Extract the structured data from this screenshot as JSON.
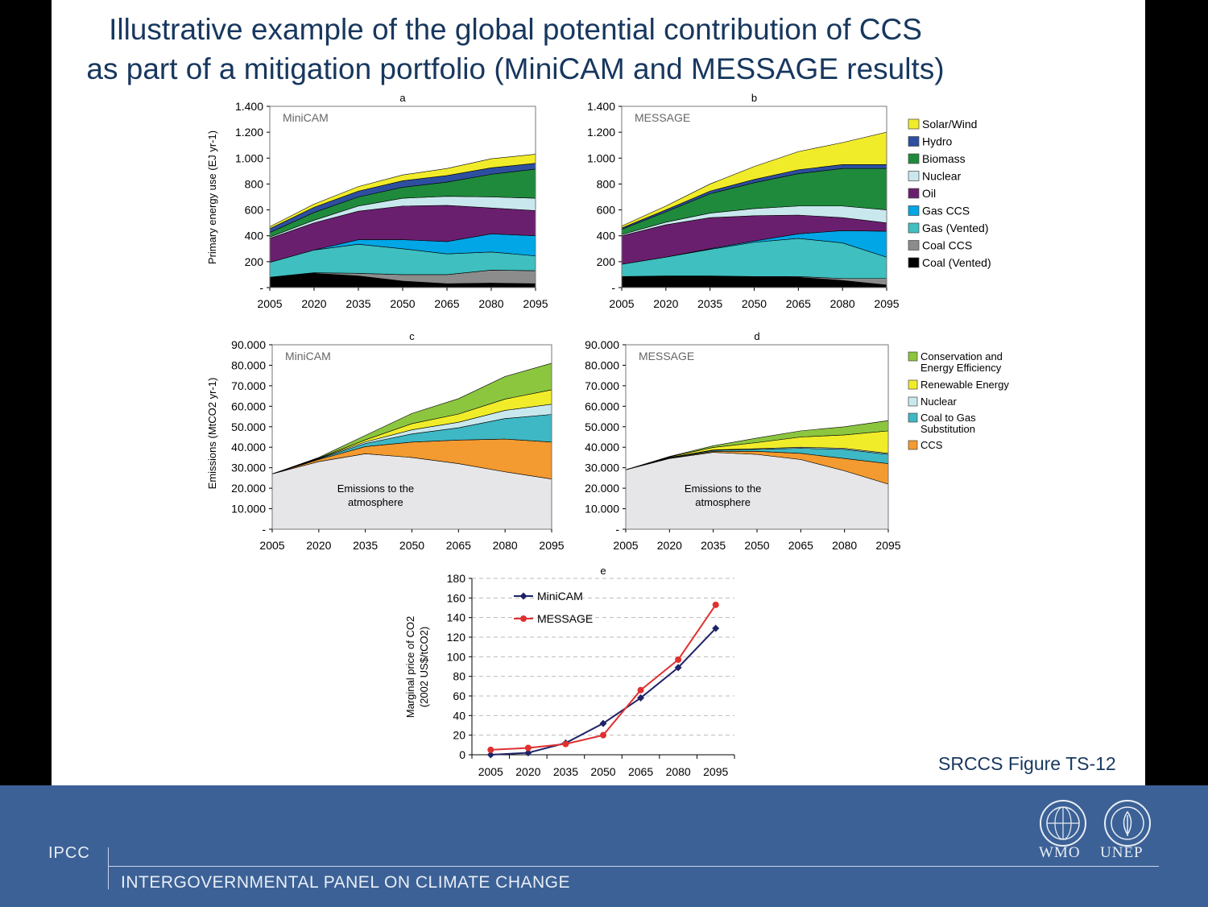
{
  "slide": {
    "title_line1": "Illustrative example of the global potential contribution of CCS",
    "title_line2": "as part of a mitigation portfolio (MiniCAM and MESSAGE results)",
    "source": "SRCCS Figure TS-12"
  },
  "footer": {
    "org_abbrev": "IPCC",
    "org_name": "INTERGOVERNMENTAL PANEL ON CLIMATE CHANGE",
    "logo_left": "WMO",
    "logo_right": "UNEP",
    "background": "#3c6196"
  },
  "chart_data": [
    {
      "panel": "a",
      "model": "MiniCAM",
      "type": "area",
      "ylabel": "Primary energy use (EJ yr-1)",
      "ylim": [
        0,
        1400
      ],
      "y_ticks": [
        "-",
        "200",
        "400",
        "600",
        "800",
        "1.000",
        "1.200",
        "1.400"
      ],
      "x": [
        "2005",
        "2020",
        "2035",
        "2050",
        "2065",
        "2080",
        "2095"
      ],
      "series": [
        {
          "name": "Coal (Vented)",
          "color": "#000000",
          "values": [
            80,
            110,
            90,
            50,
            30,
            35,
            30
          ]
        },
        {
          "name": "Coal CCS",
          "color": "#8c8c8c",
          "values": [
            0,
            5,
            20,
            50,
            70,
            100,
            100
          ]
        },
        {
          "name": "Gas (Vented)",
          "color": "#3fbfbf",
          "values": [
            115,
            175,
            225,
            200,
            160,
            140,
            115
          ]
        },
        {
          "name": "Gas CCS",
          "color": "#00a6e6",
          "values": [
            0,
            0,
            35,
            70,
            95,
            140,
            155
          ]
        },
        {
          "name": "Oil",
          "color": "#6a1f6e",
          "values": [
            185,
            210,
            220,
            260,
            280,
            200,
            195
          ]
        },
        {
          "name": "Nuclear",
          "color": "#c9e8ee",
          "values": [
            10,
            20,
            40,
            60,
            70,
            85,
            95
          ]
        },
        {
          "name": "Biomass",
          "color": "#1f8a3c",
          "values": [
            35,
            60,
            70,
            85,
            110,
            175,
            225
          ]
        },
        {
          "name": "Hydro",
          "color": "#2e4fa0",
          "values": [
            30,
            40,
            45,
            50,
            50,
            50,
            45
          ]
        },
        {
          "name": "Solar/Wind",
          "color": "#f1ec2a",
          "values": [
            15,
            25,
            35,
            45,
            55,
            70,
            70
          ]
        }
      ]
    },
    {
      "panel": "b",
      "model": "MESSAGE",
      "type": "area",
      "ylabel": "",
      "ylim": [
        0,
        1400
      ],
      "y_ticks": [
        "-",
        "200",
        "400",
        "600",
        "800",
        "1.000",
        "1.200",
        "1.400"
      ],
      "x": [
        "2005",
        "2020",
        "2035",
        "2050",
        "2065",
        "2080",
        "2095"
      ],
      "series": [
        {
          "name": "Coal (Vented)",
          "color": "#000000",
          "values": [
            85,
            90,
            90,
            85,
            80,
            55,
            20
          ]
        },
        {
          "name": "Coal CCS",
          "color": "#8c8c8c",
          "values": [
            0,
            0,
            0,
            0,
            5,
            15,
            50
          ]
        },
        {
          "name": "Gas (Vented)",
          "color": "#3fbfbf",
          "values": [
            95,
            145,
            205,
            265,
            295,
            275,
            165
          ]
        },
        {
          "name": "Gas CCS",
          "color": "#00a6e6",
          "values": [
            0,
            0,
            5,
            10,
            35,
            95,
            200
          ]
        },
        {
          "name": "Oil",
          "color": "#6a1f6e",
          "values": [
            220,
            250,
            240,
            195,
            145,
            100,
            65
          ]
        },
        {
          "name": "Nuclear",
          "color": "#c9e8ee",
          "values": [
            10,
            20,
            35,
            55,
            70,
            90,
            100
          ]
        },
        {
          "name": "Biomass",
          "color": "#1f8a3c",
          "values": [
            40,
            80,
            150,
            200,
            250,
            290,
            320
          ]
        },
        {
          "name": "Hydro",
          "color": "#2e4fa0",
          "values": [
            10,
            15,
            20,
            25,
            30,
            30,
            30
          ]
        },
        {
          "name": "Solar/Wind",
          "color": "#f1ec2a",
          "values": [
            15,
            30,
            55,
            100,
            140,
            170,
            250
          ]
        }
      ]
    },
    {
      "panel": "c",
      "model": "MiniCAM",
      "type": "area",
      "ylabel": "Emissions (MtCO2 yr-1)",
      "ylim": [
        0,
        90000
      ],
      "y_ticks": [
        "-",
        "10.000",
        "20.000",
        "30.000",
        "40.000",
        "50.000",
        "60.000",
        "70.000",
        "80.000",
        "90.000"
      ],
      "x": [
        "2005",
        "2020",
        "2035",
        "2050",
        "2065",
        "2080",
        "2095"
      ],
      "annotation": "Emissions to the atmosphere",
      "series": [
        {
          "name": "Emissions to the atmosphere",
          "color": "#e6e6e8",
          "values": [
            27000,
            33000,
            36800,
            35000,
            32000,
            28000,
            24500
          ]
        },
        {
          "name": "CCS",
          "color": "#f39a30",
          "values": [
            0,
            1000,
            3500,
            7500,
            11500,
            16000,
            18000
          ]
        },
        {
          "name": "Coal to Gas Substitution",
          "color": "#3db8c4",
          "values": [
            0,
            300,
            1500,
            4000,
            6000,
            10000,
            13500
          ]
        },
        {
          "name": "Nuclear",
          "color": "#c9e8ee",
          "values": [
            0,
            200,
            800,
            2000,
            2700,
            4000,
            5000
          ]
        },
        {
          "name": "Renewable Energy",
          "color": "#f1ec2a",
          "values": [
            0,
            200,
            1000,
            3000,
            4000,
            5500,
            7000
          ]
        },
        {
          "name": "Conservation and Energy Efficiency",
          "color": "#8cc63f",
          "values": [
            0,
            300,
            2200,
            5000,
            7500,
            11000,
            13000
          ]
        }
      ]
    },
    {
      "panel": "d",
      "model": "MESSAGE",
      "type": "area",
      "ylabel": "",
      "ylim": [
        0,
        90000
      ],
      "y_ticks": [
        "-",
        "10.000",
        "20.000",
        "30.000",
        "40.000",
        "50.000",
        "60.000",
        "70.000",
        "80.000",
        "90.000"
      ],
      "x": [
        "2005",
        "2020",
        "2035",
        "2050",
        "2065",
        "2080",
        "2095"
      ],
      "annotation": "Emissions to the atmosphere",
      "series": [
        {
          "name": "Emissions to the atmosphere",
          "color": "#e6e6e8",
          "values": [
            29000,
            34500,
            37500,
            36500,
            34000,
            28500,
            22000
          ]
        },
        {
          "name": "CCS",
          "color": "#f39a30",
          "values": [
            0,
            200,
            500,
            1500,
            3000,
            6000,
            10000
          ]
        },
        {
          "name": "Coal to Gas Substitution",
          "color": "#3db8c4",
          "values": [
            0,
            200,
            500,
            1000,
            2500,
            4500,
            4500
          ]
        },
        {
          "name": "Nuclear",
          "color": "#c9e8ee",
          "values": [
            0,
            100,
            200,
            300,
            500,
            500,
            500
          ]
        },
        {
          "name": "Renewable Energy",
          "color": "#f1ec2a",
          "values": [
            0,
            300,
            1200,
            3000,
            5000,
            6500,
            11000
          ]
        },
        {
          "name": "Conservation and Energy Efficiency",
          "color": "#8cc63f",
          "values": [
            0,
            200,
            800,
            2200,
            3000,
            4000,
            5000
          ]
        }
      ]
    },
    {
      "panel": "e",
      "type": "line",
      "ylabel_line1": "Marginal price of CO2",
      "ylabel_line2": "(2002 US$/tCO2)",
      "ylim": [
        0,
        180
      ],
      "y_ticks": [
        "0",
        "20",
        "40",
        "60",
        "80",
        "100",
        "120",
        "140",
        "160",
        "180"
      ],
      "grid": true,
      "legend": "top-left",
      "x": [
        "2005",
        "2020",
        "2035",
        "2050",
        "2065",
        "2080",
        "2095"
      ],
      "series": [
        {
          "name": "MiniCAM",
          "color": "#1f2366",
          "marker": "diamond",
          "values": [
            0,
            2,
            12,
            32,
            58,
            89,
            129
          ]
        },
        {
          "name": "MESSAGE",
          "color": "#e03030",
          "marker": "circle",
          "values": [
            5,
            7,
            11,
            20,
            66,
            97,
            153
          ]
        }
      ]
    }
  ],
  "legends": {
    "energy": [
      "Solar/Wind",
      "Hydro",
      "Biomass",
      "Nuclear",
      "Oil",
      "Gas CCS",
      "Gas (Vented)",
      "Coal CCS",
      "Coal (Vented)"
    ],
    "emissions": [
      [
        "Conservation and",
        "Energy Efficiency"
      ],
      [
        "Renewable Energy"
      ],
      [
        "Nuclear"
      ],
      [
        "Coal to Gas",
        "Substitution"
      ],
      [
        "CCS"
      ]
    ]
  }
}
